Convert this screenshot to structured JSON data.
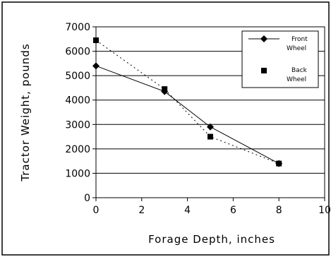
{
  "chart_data": {
    "type": "scatter",
    "title": "",
    "xlabel": "Forage Depth, inches",
    "ylabel": "Tractor Weight, pounds",
    "xlim": [
      0,
      10
    ],
    "ylim": [
      0,
      7000
    ],
    "x_ticks": [
      "0",
      "2",
      "4",
      "6",
      "8",
      "10"
    ],
    "y_ticks": [
      "0",
      "1000",
      "2000",
      "3000",
      "4000",
      "5000",
      "6000",
      "7000"
    ],
    "grid": "horizontal",
    "legend_position": "top-right",
    "series": [
      {
        "name": "Front Wheel",
        "marker": "diamond",
        "line_style": "solid",
        "color": "#000000",
        "points": [
          {
            "x": 0,
            "y": 5400
          },
          {
            "x": 3,
            "y": 4350
          },
          {
            "x": 5,
            "y": 2900
          },
          {
            "x": 8,
            "y": 1400
          }
        ]
      },
      {
        "name": "Back Wheel",
        "marker": "square",
        "line_style": "dotted",
        "color": "#000000",
        "points": [
          {
            "x": 0,
            "y": 6450
          },
          {
            "x": 3,
            "y": 4450
          },
          {
            "x": 5,
            "y": 2500
          },
          {
            "x": 8,
            "y": 1400
          }
        ]
      }
    ]
  },
  "legend": {
    "front_line1": "Front",
    "front_line2": "Wheel",
    "back_line1": "Back",
    "back_line2": "Wheel"
  }
}
